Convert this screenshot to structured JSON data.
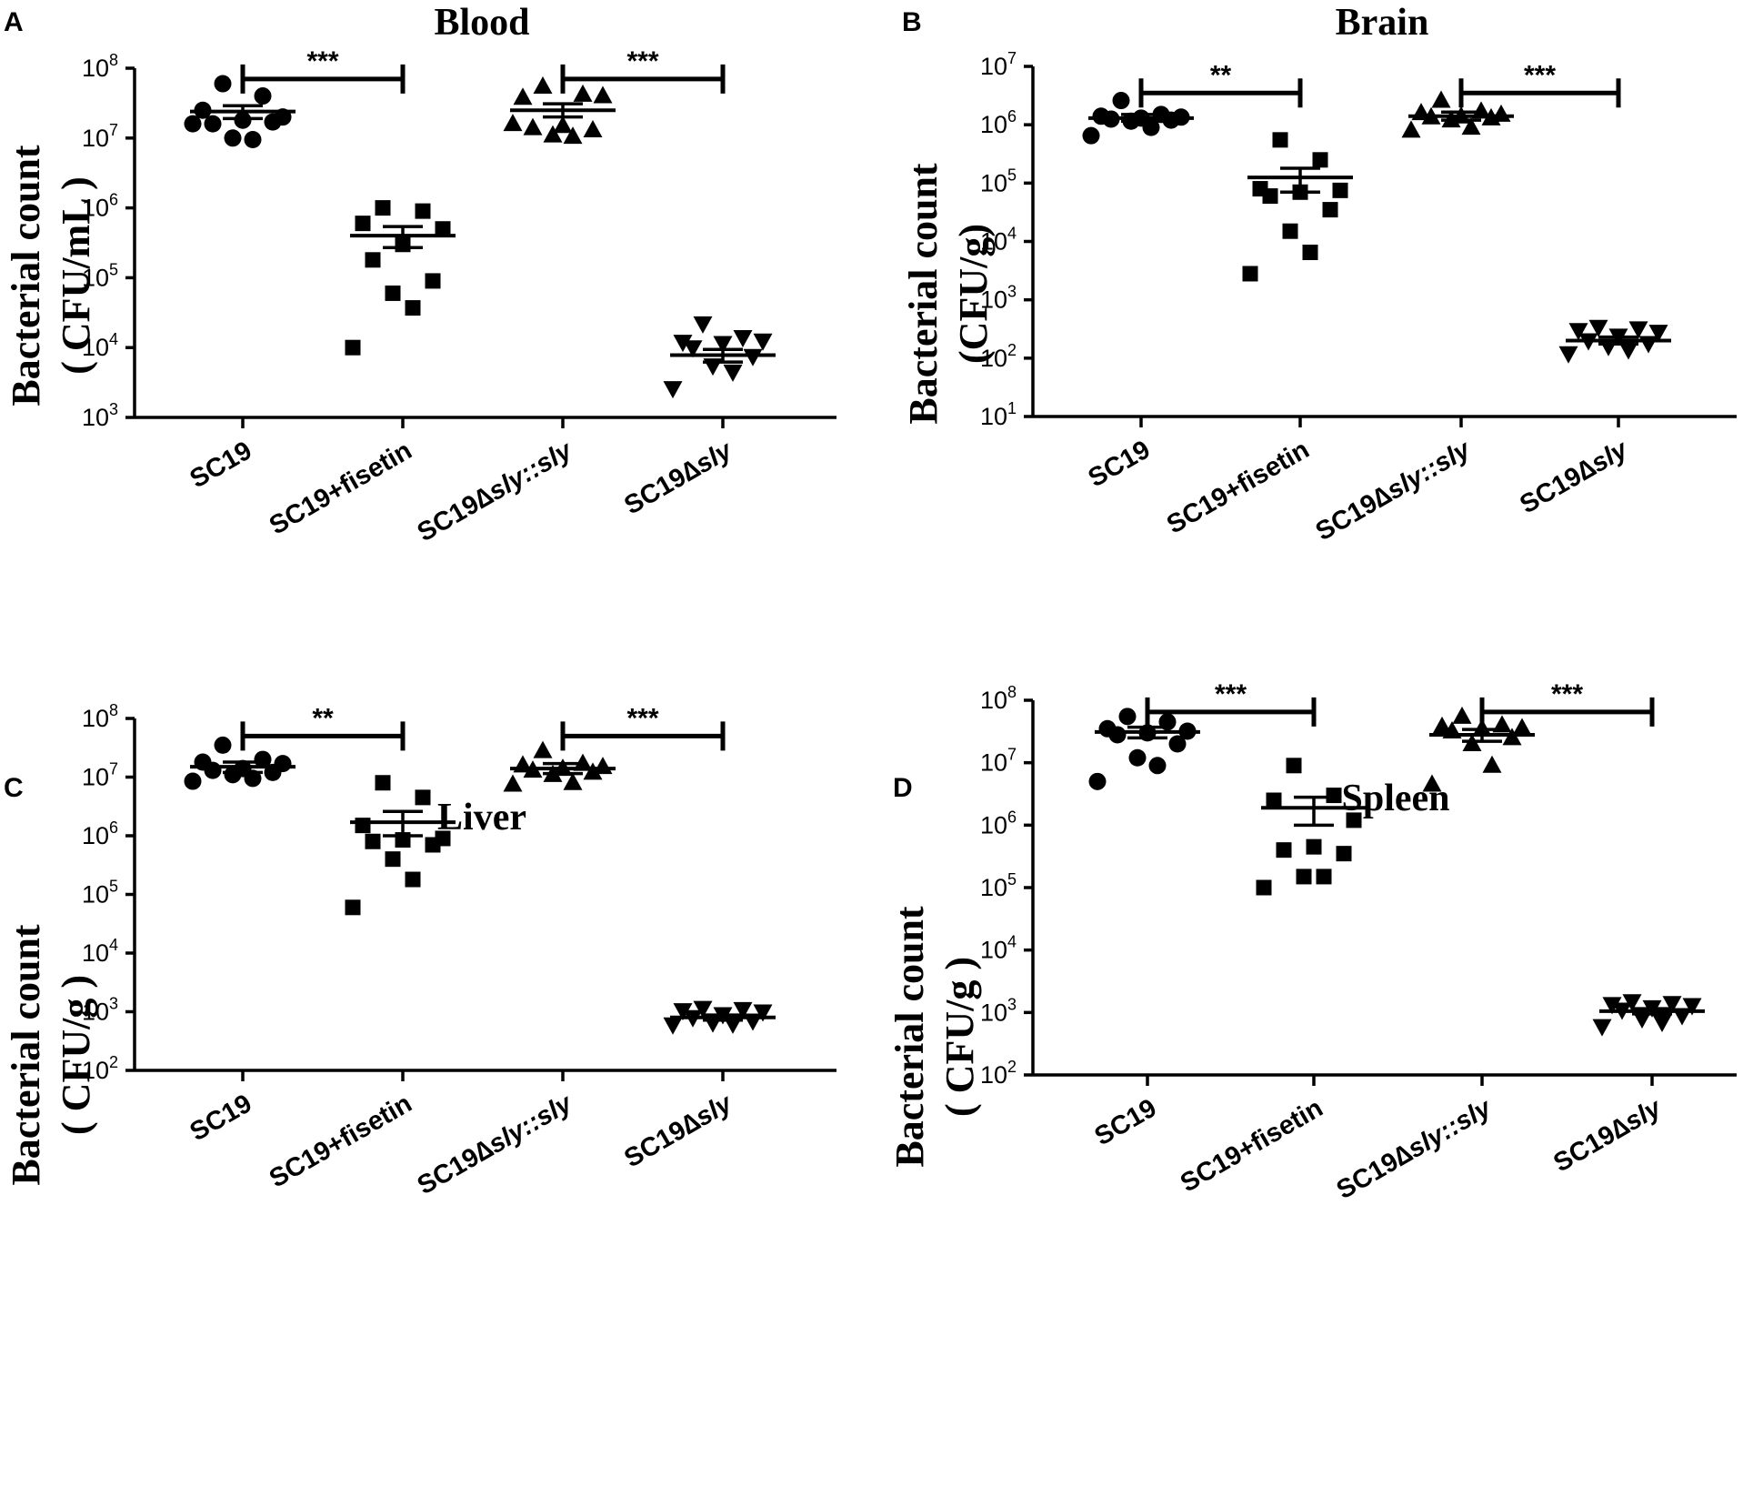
{
  "figure": {
    "categories": [
      "SC19",
      "SC19+fisetin",
      "SC19∆sly::sly",
      "SC19∆sly"
    ],
    "category_parts": [
      {
        "prefix": "SC19",
        "italic": "",
        "suffix": ""
      },
      {
        "prefix": "SC19+fisetin",
        "italic": "",
        "suffix": ""
      },
      {
        "prefix": "SC19∆",
        "italic": "sly::sly",
        "suffix": ""
      },
      {
        "prefix": "SC19∆",
        "italic": "sly",
        "suffix": ""
      }
    ],
    "markers": [
      "circle",
      "square",
      "triangle-up",
      "triangle-down"
    ],
    "ylabel_main": "Bacterial count"
  },
  "chart_data": [
    {
      "panel": "A",
      "type": "scatter",
      "title": "Blood",
      "ylabel": "Bacterial count",
      "ylabel_unit": "( CFU/mL )",
      "yscale": "log10",
      "ylim": [
        1000,
        100000000
      ],
      "yticks": [
        {
          "base": "10",
          "exp": "3",
          "value": 1000
        },
        {
          "base": "10",
          "exp": "4",
          "value": 10000
        },
        {
          "base": "10",
          "exp": "5",
          "value": 100000
        },
        {
          "base": "10",
          "exp": "6",
          "value": 1000000
        },
        {
          "base": "10",
          "exp": "7",
          "value": 10000000
        },
        {
          "base": "10",
          "exp": "8",
          "value": 100000000
        }
      ],
      "categories": [
        "SC19",
        "SC19+fisetin",
        "SC19∆sly::sly",
        "SC19∆sly"
      ],
      "series": [
        {
          "name": "SC19",
          "marker": "circle",
          "mean": 24000000,
          "sem_low": 19000000,
          "sem_high": 29000000,
          "values": [
            60000000,
            40000000,
            25000000,
            20000000,
            18000000,
            16000000,
            17000000,
            10000000,
            9500000,
            16000000
          ]
        },
        {
          "name": "SC19+fisetin",
          "marker": "square",
          "mean": 400000,
          "sem_low": 270000,
          "sem_high": 540000,
          "values": [
            1000000,
            900000,
            600000,
            500000,
            300000,
            180000,
            90000,
            60000,
            37000,
            10000
          ]
        },
        {
          "name": "SC19∆sly::sly",
          "marker": "triangle-up",
          "mean": 25000000,
          "sem_low": 20000000,
          "sem_high": 31000000,
          "values": [
            55000000,
            42000000,
            38000000,
            40000000,
            15000000,
            14000000,
            13000000,
            11000000,
            10500000,
            16000000
          ]
        },
        {
          "name": "SC19∆sly",
          "marker": "triangle-down",
          "mean": 7800,
          "sem_low": 6200,
          "sem_high": 9400,
          "values": [
            22000,
            14000,
            12000,
            12500,
            11500,
            10000,
            7500,
            5500,
            4500,
            2600
          ]
        }
      ],
      "comparisons": [
        {
          "groups": [
            "SC19",
            "SC19+fisetin"
          ],
          "label": "***",
          "y": 70000000
        },
        {
          "groups": [
            "SC19∆sly::sly",
            "SC19∆sly"
          ],
          "label": "***",
          "y": 70000000
        }
      ]
    },
    {
      "panel": "B",
      "type": "scatter",
      "title": "Brain",
      "ylabel": "Bacterial count",
      "ylabel_unit": "(CFU/g)",
      "yscale": "log10",
      "ylim": [
        10,
        10000000
      ],
      "yticks": [
        {
          "base": "10",
          "exp": "1",
          "value": 10
        },
        {
          "base": "10",
          "exp": "2",
          "value": 100
        },
        {
          "base": "10",
          "exp": "3",
          "value": 1000
        },
        {
          "base": "10",
          "exp": "4",
          "value": 10000
        },
        {
          "base": "10",
          "exp": "5",
          "value": 100000
        },
        {
          "base": "10",
          "exp": "6",
          "value": 1000000
        },
        {
          "base": "10",
          "exp": "7",
          "value": 10000000
        }
      ],
      "categories": [
        "SC19",
        "SC19+fisetin",
        "SC19∆sly::sly",
        "SC19∆sly"
      ],
      "series": [
        {
          "name": "SC19",
          "marker": "circle",
          "mean": 1300000,
          "sem_low": 1150000,
          "sem_high": 1500000,
          "values": [
            2600000,
            1500000,
            1400000,
            1350000,
            1300000,
            1250000,
            1200000,
            1150000,
            900000,
            650000
          ]
        },
        {
          "name": "SC19+fisetin",
          "marker": "square",
          "mean": 125000,
          "sem_low": 70000,
          "sem_high": 180000,
          "values": [
            550000,
            250000,
            80000,
            75000,
            70000,
            60000,
            35000,
            15000,
            6500,
            2800
          ]
        },
        {
          "name": "SC19∆sly::sly",
          "marker": "triangle-up",
          "mean": 1400000,
          "sem_low": 1200000,
          "sem_high": 1650000,
          "values": [
            2600000,
            1700000,
            1600000,
            1500000,
            1400000,
            1350000,
            1300000,
            1200000,
            900000,
            800000
          ]
        },
        {
          "name": "SC19∆sly",
          "marker": "triangle-down",
          "mean": 200,
          "sem_low": 175,
          "sem_high": 230,
          "values": [
            340,
            320,
            300,
            280,
            240,
            200,
            180,
            160,
            140,
            120
          ]
        }
      ],
      "comparisons": [
        {
          "groups": [
            "SC19",
            "SC19+fisetin"
          ],
          "label": "**",
          "y": 3500000
        },
        {
          "groups": [
            "SC19∆sly::sly",
            "SC19∆sly"
          ],
          "label": "***",
          "y": 3500000
        }
      ]
    },
    {
      "panel": "C",
      "type": "scatter",
      "title": "Liver",
      "ylabel": "Bacterial count",
      "ylabel_unit": "( CFU/g )",
      "yscale": "log10",
      "ylim": [
        100,
        100000000
      ],
      "yticks": [
        {
          "base": "10",
          "exp": "2",
          "value": 100
        },
        {
          "base": "10",
          "exp": "3",
          "value": 1000
        },
        {
          "base": "10",
          "exp": "4",
          "value": 10000
        },
        {
          "base": "10",
          "exp": "5",
          "value": 100000
        },
        {
          "base": "10",
          "exp": "6",
          "value": 1000000
        },
        {
          "base": "10",
          "exp": "7",
          "value": 10000000
        },
        {
          "base": "10",
          "exp": "8",
          "value": 100000000
        }
      ],
      "categories": [
        "SC19",
        "SC19+fisetin",
        "SC19∆sly::sly",
        "SC19∆sly"
      ],
      "series": [
        {
          "name": "SC19",
          "marker": "circle",
          "mean": 15000000,
          "sem_low": 12000000,
          "sem_high": 18000000,
          "values": [
            35000000,
            20000000,
            18000000,
            17000000,
            14000000,
            13000000,
            12000000,
            11000000,
            9500000,
            8500000
          ]
        },
        {
          "name": "SC19+fisetin",
          "marker": "square",
          "mean": 1700000,
          "sem_low": 1000000,
          "sem_high": 2600000,
          "values": [
            8000000,
            4500000,
            1500000,
            900000,
            850000,
            800000,
            700000,
            400000,
            180000,
            60000
          ]
        },
        {
          "name": "SC19∆sly::sly",
          "marker": "triangle-up",
          "mean": 14000000,
          "sem_low": 11500000,
          "sem_high": 17000000,
          "values": [
            28000000,
            17000000,
            16000000,
            15000000,
            14000000,
            13000000,
            12000000,
            11000000,
            8000000,
            7500000
          ]
        },
        {
          "name": "SC19∆sly",
          "marker": "triangle-down",
          "mean": 800,
          "sem_low": 720,
          "sem_high": 880,
          "values": [
            1150,
            1100,
            1050,
            1000,
            900,
            800,
            700,
            650,
            620,
            600
          ]
        }
      ],
      "comparisons": [
        {
          "groups": [
            "SC19",
            "SC19+fisetin"
          ],
          "label": "**",
          "y": 50000000
        },
        {
          "groups": [
            "SC19∆sly::sly",
            "SC19∆sly"
          ],
          "label": "***",
          "y": 50000000
        }
      ]
    },
    {
      "panel": "D",
      "type": "scatter",
      "title": "Spleen",
      "ylabel": "Bacterial count",
      "ylabel_unit": "( CFU/g )",
      "yscale": "log10",
      "ylim": [
        100,
        100000000
      ],
      "yticks": [
        {
          "base": "10",
          "exp": "2",
          "value": 100
        },
        {
          "base": "10",
          "exp": "3",
          "value": 1000
        },
        {
          "base": "10",
          "exp": "4",
          "value": 10000
        },
        {
          "base": "10",
          "exp": "5",
          "value": 100000
        },
        {
          "base": "10",
          "exp": "6",
          "value": 1000000
        },
        {
          "base": "10",
          "exp": "7",
          "value": 10000000
        },
        {
          "base": "10",
          "exp": "8",
          "value": 100000000
        }
      ],
      "categories": [
        "SC19",
        "SC19+fisetin",
        "SC19∆sly::sly",
        "SC19∆sly"
      ],
      "series": [
        {
          "name": "SC19",
          "marker": "circle",
          "mean": 31000000,
          "sem_low": 25000000,
          "sem_high": 37000000,
          "values": [
            55000000,
            45000000,
            35000000,
            32000000,
            30000000,
            28000000,
            20000000,
            12000000,
            9000000,
            5000000
          ]
        },
        {
          "name": "SC19+fisetin",
          "marker": "square",
          "mean": 1900000,
          "sem_low": 1000000,
          "sem_high": 2800000,
          "values": [
            9000000,
            3000000,
            2500000,
            1200000,
            450000,
            400000,
            350000,
            150000,
            150000,
            100000
          ]
        },
        {
          "name": "SC19∆sly::sly",
          "marker": "triangle-up",
          "mean": 28000000,
          "sem_low": 22000000,
          "sem_high": 34000000,
          "values": [
            55000000,
            40000000,
            38000000,
            36000000,
            35000000,
            32000000,
            25000000,
            20000000,
            9000000,
            4500000
          ]
        },
        {
          "name": "SC19∆sly",
          "marker": "triangle-down",
          "mean": 1050,
          "sem_low": 950,
          "sem_high": 1150,
          "values": [
            1500,
            1400,
            1350,
            1300,
            1200,
            1100,
            900,
            800,
            700,
            600
          ]
        }
      ],
      "comparisons": [
        {
          "groups": [
            "SC19",
            "SC19+fisetin"
          ],
          "label": "***",
          "y": 65000000
        },
        {
          "groups": [
            "SC19∆sly::sly",
            "SC19∆sly"
          ],
          "label": "***",
          "y": 65000000
        }
      ]
    }
  ]
}
